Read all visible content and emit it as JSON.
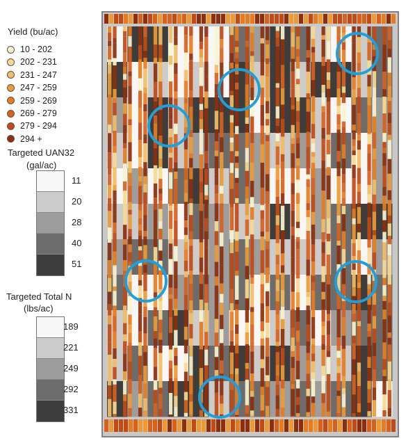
{
  "yield_legend": {
    "title": "Yield (bu/ac)",
    "classes": [
      {
        "label": "10 - 202",
        "color": "#fbf3cf"
      },
      {
        "label": "202 - 231",
        "color": "#f7d98f"
      },
      {
        "label": "231 - 247",
        "color": "#f3bc63"
      },
      {
        "label": "247 - 259",
        "color": "#ee9a33"
      },
      {
        "label": "259 - 269",
        "color": "#e87b1e"
      },
      {
        "label": "269 - 279",
        "color": "#d8621c"
      },
      {
        "label": "279 - 294",
        "color": "#c24a14"
      },
      {
        "label": "294 +",
        "color": "#8d2f0c"
      }
    ]
  },
  "uan_legend": {
    "title_line1": "Targeted UAN32",
    "title_line2": "(gal/ac)",
    "classes": [
      {
        "label": "11",
        "color": "#f7f7f7"
      },
      {
        "label": "20",
        "color": "#cccccc"
      },
      {
        "label": "28",
        "color": "#9d9d9d"
      },
      {
        "label": "40",
        "color": "#6c6c6c"
      },
      {
        "label": "51",
        "color": "#3d3d3d"
      }
    ]
  },
  "totaln_legend": {
    "title_line1": "Targeted Total N",
    "title_line2": "(lbs/ac)",
    "classes": [
      {
        "label": "189",
        "color": "#f7f7f7"
      },
      {
        "label": "221",
        "color": "#cccccc"
      },
      {
        "label": "249",
        "color": "#9d9d9d"
      },
      {
        "label": "292",
        "color": "#6c6c6c"
      },
      {
        "label": "331",
        "color": "#3d3d3d"
      }
    ]
  },
  "map": {
    "highlight_color": "#1ea0dc",
    "background_color": "#ffffff"
  }
}
